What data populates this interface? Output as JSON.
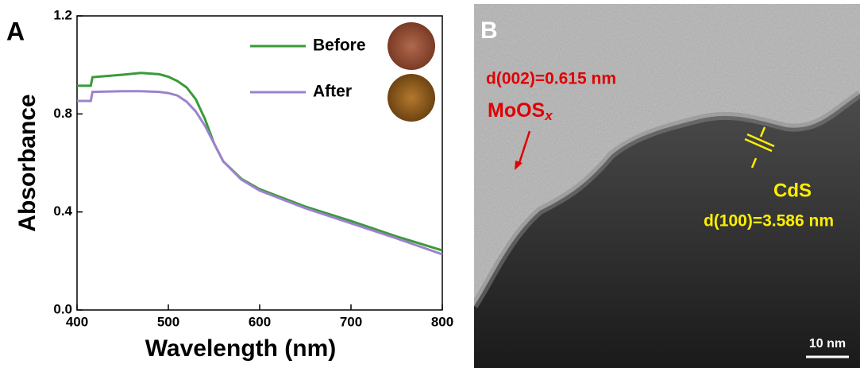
{
  "chart_data": {
    "type": "line",
    "panel_label": "A",
    "x_label": "Wavelength (nm)",
    "y_label": "Absorbance",
    "x": [
      400,
      415,
      417,
      450,
      470,
      490,
      500,
      510,
      520,
      530,
      540,
      550,
      560,
      580,
      600,
      650,
      700,
      750,
      800
    ],
    "series": [
      {
        "name": "Before",
        "color": "#3a9a3a",
        "values": [
          0.915,
          0.915,
          0.95,
          0.96,
          0.967,
          0.962,
          0.952,
          0.934,
          0.908,
          0.86,
          0.78,
          0.68,
          0.607,
          0.535,
          0.493,
          0.422,
          0.363,
          0.3,
          0.243
        ]
      },
      {
        "name": "After",
        "color": "#9d82cf",
        "values": [
          0.853,
          0.853,
          0.89,
          0.893,
          0.893,
          0.89,
          0.885,
          0.875,
          0.85,
          0.81,
          0.752,
          0.68,
          0.607,
          0.532,
          0.487,
          0.415,
          0.354,
          0.292,
          0.227
        ]
      }
    ],
    "xlim": [
      400,
      800
    ],
    "xticks": [
      400,
      500,
      600,
      700,
      800
    ],
    "ylim": [
      0,
      1.2
    ],
    "yticks": [
      {
        "value": 0,
        "label": "0.0"
      },
      0.4,
      0.8,
      1.2
    ],
    "legend": "upper right"
  },
  "panel_b": {
    "panel_label": "B",
    "lattice_1": "d(002)=0.615 nm",
    "material_1": "MoOS",
    "material_1_subscript": "x",
    "material_2": "CdS",
    "lattice_2": "d(100)=3.586 nm",
    "scale_bar": "10 nm"
  }
}
